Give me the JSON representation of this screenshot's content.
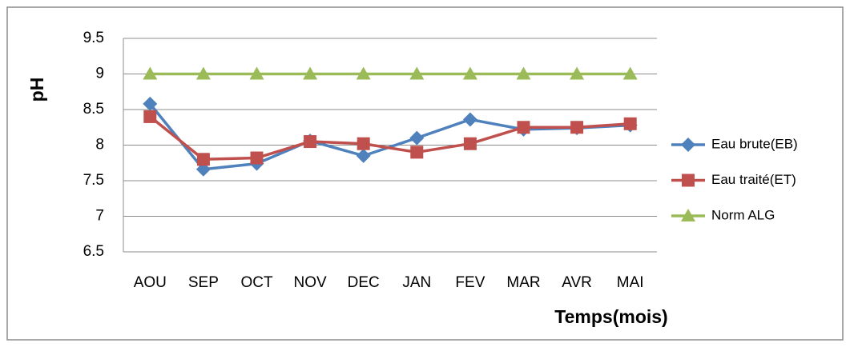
{
  "chart_data": {
    "type": "line",
    "xlabel": "Temps(mois)",
    "ylabel": "pH",
    "categories": [
      "AOU",
      "SEP",
      "OCT",
      "NOV",
      "DEC",
      "JAN",
      "FEV",
      "MAR",
      "AVR",
      "MAI"
    ],
    "series": [
      {
        "name": "Eau brute(EB)",
        "color": "#4f81bd",
        "marker": "diamond",
        "values": [
          8.58,
          7.66,
          7.74,
          8.06,
          7.85,
          8.1,
          8.36,
          8.22,
          8.24,
          8.28
        ]
      },
      {
        "name": "Eau traité(ET)",
        "color": "#c0504d",
        "marker": "square",
        "values": [
          8.4,
          7.8,
          7.82,
          8.05,
          8.02,
          7.9,
          8.02,
          8.25,
          8.25,
          8.3
        ]
      },
      {
        "name": "Norm ALG",
        "color": "#9bbb59",
        "marker": "triangle",
        "values": [
          9,
          9,
          9,
          9,
          9,
          9,
          9,
          9,
          9,
          9
        ]
      }
    ],
    "ylim": [
      6.5,
      9.5
    ],
    "yticks": [
      6.5,
      7,
      7.5,
      8,
      8.5,
      9,
      9.5
    ],
    "grid": true,
    "legend": "right"
  }
}
